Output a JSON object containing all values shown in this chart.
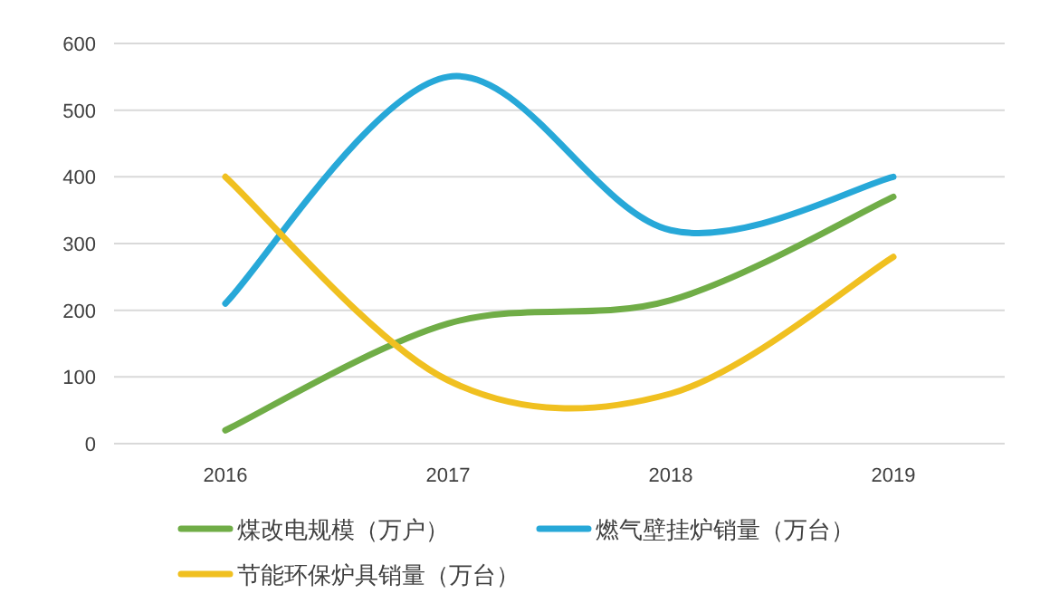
{
  "chart_data": {
    "type": "line",
    "categories": [
      "2016",
      "2017",
      "2018",
      "2019"
    ],
    "series": [
      {
        "name": "煤改电规模（万户）",
        "color": "#70ad47",
        "values": [
          20,
          180,
          215,
          370
        ]
      },
      {
        "name": "燃气壁挂炉销量（万台）",
        "color": "#27a8d8",
        "values": [
          210,
          550,
          320,
          400
        ]
      },
      {
        "name": "节能环保炉具销量（万台）",
        "color": "#f0c020",
        "values": [
          400,
          95,
          75,
          280
        ]
      }
    ],
    "ylim": [
      0,
      600
    ],
    "yticks": [
      0,
      100,
      200,
      300,
      400,
      500,
      600
    ],
    "grid": "y",
    "legend": "bottom",
    "marker": "none",
    "line_style": "solid"
  }
}
